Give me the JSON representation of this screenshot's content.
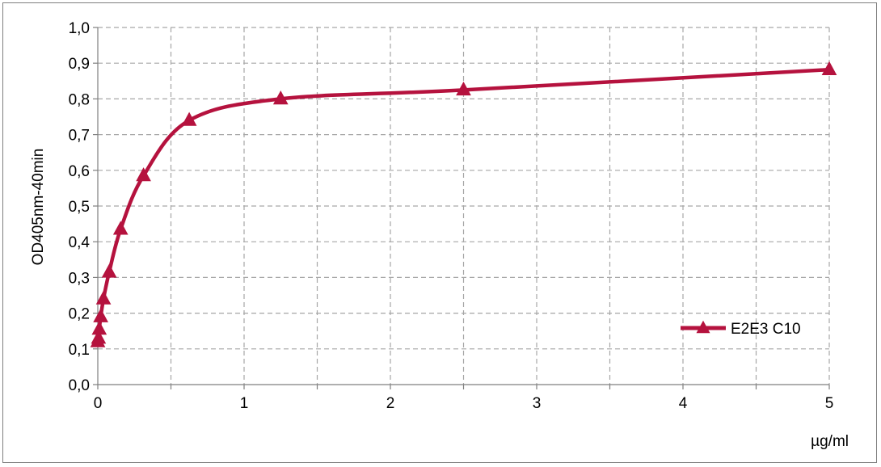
{
  "chart_data": {
    "type": "line",
    "title": "",
    "xlabel": "µg/ml",
    "ylabel": "OD405nm-40min",
    "xlim": [
      0,
      5
    ],
    "ylim": [
      0,
      1.0
    ],
    "x_ticks": [
      0,
      1,
      2,
      3,
      4,
      5
    ],
    "x_tick_labels": [
      "0",
      "1",
      "2",
      "3",
      "4",
      "5"
    ],
    "y_ticks": [
      0,
      0.1,
      0.2,
      0.3,
      0.4,
      0.5,
      0.6,
      0.7,
      0.8,
      0.9,
      1.0
    ],
    "y_tick_labels": [
      "0,0",
      "0,1",
      "0,2",
      "0,3",
      "0,4",
      "0,5",
      "0,6",
      "0,7",
      "0,8",
      "0,9",
      "1,0"
    ],
    "x_minor_grid": [
      0.5,
      1.5,
      2.5,
      3.5,
      4.5
    ],
    "grid": true,
    "grid_style": "dashed",
    "legend_position": "bottom-right",
    "series": [
      {
        "name": "E2E3 C10",
        "color": "#b5123e",
        "marker": "triangle",
        "smooth": true,
        "x": [
          0,
          0.005,
          0.01,
          0.02,
          0.039,
          0.078,
          0.156,
          0.3125,
          0.625,
          1.25,
          2.5,
          5
        ],
        "y": [
          0.12,
          0.13,
          0.155,
          0.19,
          0.24,
          0.315,
          0.435,
          0.585,
          0.74,
          0.8,
          0.825,
          0.882
        ]
      }
    ]
  }
}
